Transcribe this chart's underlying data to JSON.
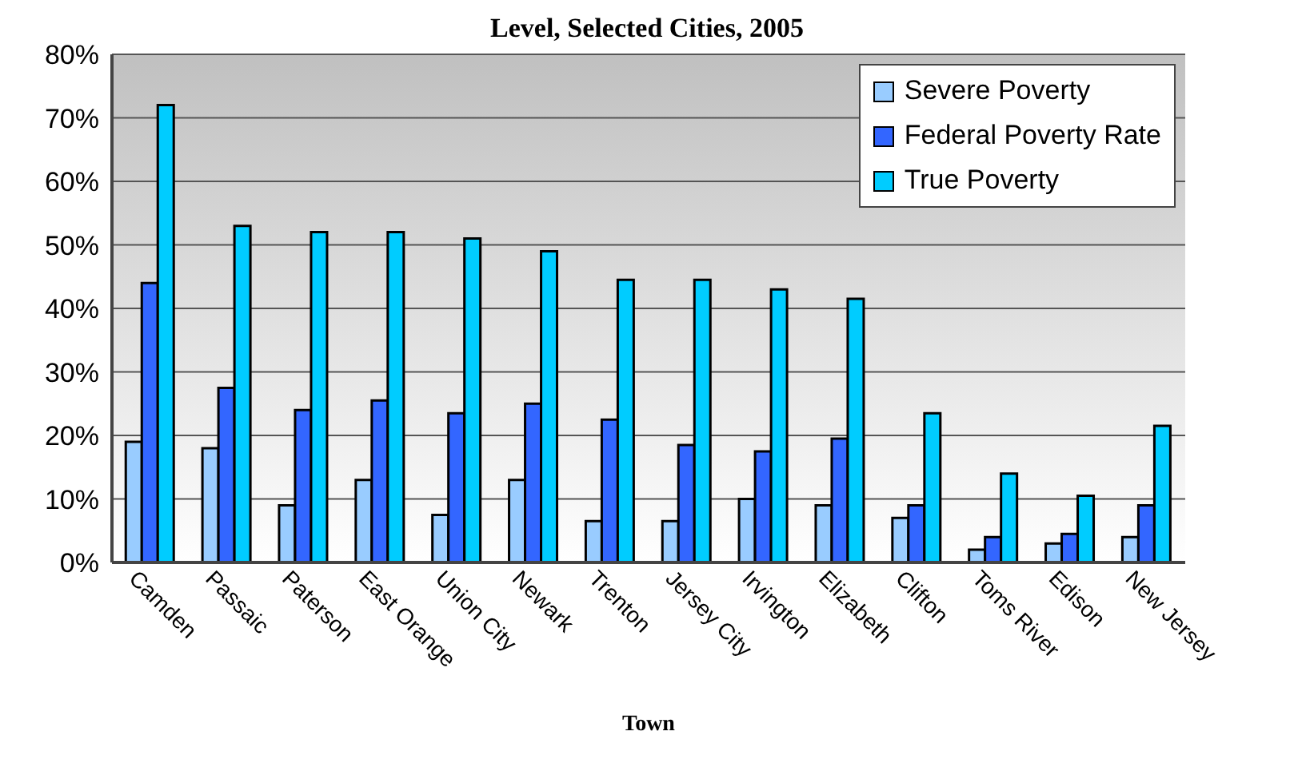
{
  "chart_data": {
    "type": "bar",
    "title": "Level, Selected Cities, 2005",
    "xlabel": "Town",
    "categories": [
      "Camden",
      "Passaic",
      "Paterson",
      "East Orange",
      "Union City",
      "Newark",
      "Trenton",
      "Jersey City",
      "Irvington",
      "Elizabeth",
      "Clifton",
      "Toms River",
      "Edison",
      "New Jersey"
    ],
    "series": [
      {
        "name": "Severe Poverty",
        "color": "#99ccff",
        "values": [
          19,
          18,
          9,
          13,
          7.5,
          13,
          6.5,
          6.5,
          10,
          9,
          7,
          2,
          3,
          4
        ]
      },
      {
        "name": "Federal Poverty Rate",
        "color": "#3366ff",
        "values": [
          44,
          27.5,
          24,
          25.5,
          23.5,
          25,
          22.5,
          18.5,
          17.5,
          19.5,
          9,
          4,
          4.5,
          9
        ]
      },
      {
        "name": "True Poverty",
        "color": "#00ccff",
        "values": [
          72,
          53,
          52,
          52,
          51,
          49,
          44.5,
          44.5,
          43,
          41.5,
          23.5,
          14,
          10.5,
          21.5
        ]
      }
    ],
    "ylim": [
      0,
      80
    ],
    "yticks": [
      {
        "value": 0,
        "label": "0%"
      },
      {
        "value": 10,
        "label": "10%"
      },
      {
        "value": 20,
        "label": "20%"
      },
      {
        "value": 30,
        "label": "30%"
      },
      {
        "value": 40,
        "label": "40%"
      },
      {
        "value": 50,
        "label": "50%"
      },
      {
        "value": 60,
        "label": "60%"
      },
      {
        "value": 70,
        "label": "70%"
      },
      {
        "value": 80,
        "label": "80%"
      }
    ],
    "grid": "y",
    "legend": "top right"
  }
}
